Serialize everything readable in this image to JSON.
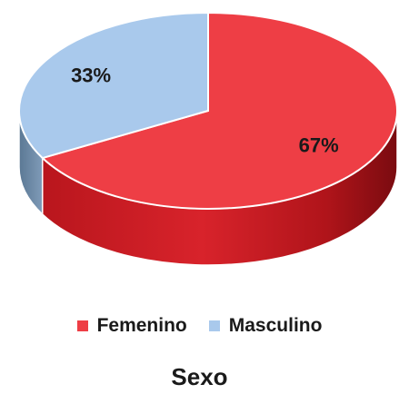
{
  "chart_data": {
    "type": "pie",
    "title": "Sexo",
    "categories": [
      "Femenino",
      "Masculino"
    ],
    "values": [
      67,
      33
    ],
    "data_labels": [
      "67%",
      "33%"
    ],
    "colors": [
      "#ee3e45",
      "#a9c9ec"
    ],
    "legend_position": "bottom",
    "style": "3d-pie"
  }
}
